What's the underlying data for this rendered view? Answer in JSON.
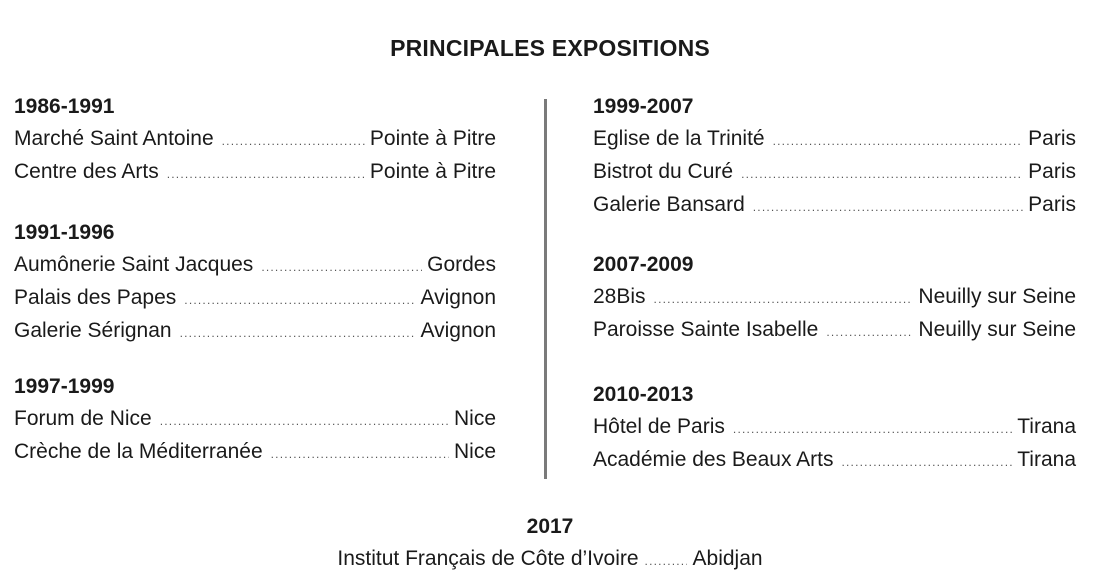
{
  "title": "PRINCIPALES EXPOSITIONS",
  "left_column": [
    {
      "year": "1986-1991",
      "entries": [
        {
          "venue": "Marché Saint Antoine",
          "city": "Pointe à Pitre"
        },
        {
          "venue": "Centre des Arts",
          "city": "Pointe à Pitre"
        }
      ]
    },
    {
      "year": "1991-1996",
      "entries": [
        {
          "venue": "Aumônerie Saint Jacques",
          "city": "Gordes"
        },
        {
          "venue": "Palais des Papes",
          "city": "Avignon"
        },
        {
          "venue": "Galerie Sérignan",
          "city": "Avignon"
        }
      ]
    },
    {
      "year": "1997-1999",
      "entries": [
        {
          "venue": "Forum de Nice",
          "city": "Nice"
        },
        {
          "venue": "Crèche de la Méditerranée",
          "city": "Nice"
        }
      ]
    }
  ],
  "right_column": [
    {
      "year": "1999-2007",
      "entries": [
        {
          "venue": "Eglise de la Trinité",
          "city": "Paris"
        },
        {
          "venue": "Bistrot du Curé",
          "city": "Paris"
        },
        {
          "venue": "Galerie Bansard",
          "city": "Paris"
        }
      ]
    },
    {
      "year": "2007-2009",
      "entries": [
        {
          "venue": "28Bis",
          "city": "Neuilly sur Seine"
        },
        {
          "venue": "Paroisse Sainte Isabelle",
          "city": "Neuilly sur Seine"
        }
      ]
    },
    {
      "year": "2010-2013",
      "entries": [
        {
          "venue": "Hôtel de Paris",
          "city": "Tirana"
        },
        {
          "venue": "Académie des Beaux Arts",
          "city": "Tirana"
        }
      ]
    }
  ],
  "footer": {
    "year": "2017",
    "venue": "Institut Français de Côte d’Ivoire",
    "city": "Abidjan"
  },
  "colors": {
    "text": "#1a1a1a",
    "divider": "#7a7a7a",
    "dots": "#555555"
  }
}
